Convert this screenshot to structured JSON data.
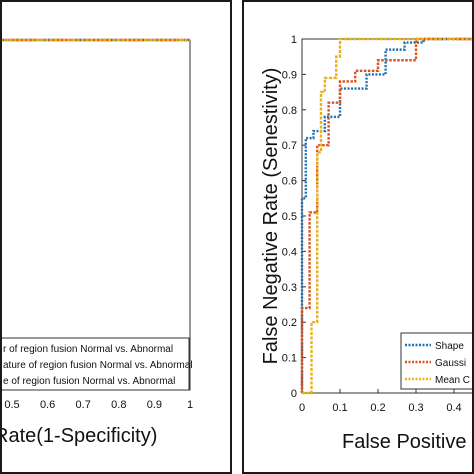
{
  "chart_data": [
    {
      "type": "line",
      "xlabel": "Rate(1-Specificity)",
      "xlim": [
        0,
        1
      ],
      "ylim": [
        0,
        1
      ],
      "x_ticks": [
        "0.5",
        "0.6",
        "0.7",
        "0.8",
        "0.9",
        "1"
      ],
      "legend_placement": "bottom-right",
      "series": [
        {
          "name": "r of region fusion Normal vs. Abnormal",
          "color": "#1f6fb2",
          "x": [
            0,
            0.02,
            0.02,
            0.06,
            0.06,
            0.1,
            0.1,
            0.15,
            0.15,
            1.0
          ],
          "y": [
            0.94,
            0.94,
            0.96,
            0.96,
            0.98,
            0.98,
            0.99,
            0.99,
            1.0,
            1.0
          ]
        },
        {
          "name": "ature of region fusion Normal vs. Abnormal",
          "color": "#d9531e",
          "x": [
            0,
            0.03,
            0.03,
            0.08,
            0.08,
            0.12,
            0.12,
            1.0
          ],
          "y": [
            0.95,
            0.95,
            0.97,
            0.97,
            0.99,
            0.99,
            1.0,
            1.0
          ]
        },
        {
          "name": "e of region fusion Normal vs. Abnormal",
          "color": "#e8b11c",
          "x": [
            0,
            0.04,
            0.04,
            0.09,
            0.09,
            1.0
          ],
          "y": [
            0.96,
            0.96,
            0.98,
            0.98,
            1.0,
            1.0
          ]
        }
      ]
    },
    {
      "type": "line",
      "xlabel": "False Positive R",
      "ylabel": "False Negative Rate (Senestivity)",
      "xlim": [
        0,
        0.5
      ],
      "ylim": [
        0,
        1
      ],
      "x_ticks": [
        "0",
        "0.1",
        "0.2",
        "0.3",
        "0.4"
      ],
      "y_ticks": [
        "0",
        "0.1",
        "0.2",
        "0.3",
        "0.4",
        "0.5",
        "0.6",
        "0.7",
        "0.8",
        "0.9",
        "1"
      ],
      "grid": false,
      "legend_placement": "bottom-right",
      "series": [
        {
          "name": "Shape",
          "color": "#1f6fb2",
          "x": [
            0,
            0,
            0.01,
            0.01,
            0.03,
            0.03,
            0.06,
            0.06,
            0.1,
            0.1,
            0.17,
            0.17,
            0.22,
            0.22,
            0.27,
            0.27,
            0.32,
            0.32,
            0.5
          ],
          "y": [
            0,
            0.55,
            0.55,
            0.72,
            0.72,
            0.74,
            0.74,
            0.78,
            0.78,
            0.86,
            0.86,
            0.9,
            0.9,
            0.97,
            0.97,
            0.99,
            0.99,
            1.0,
            1.0
          ]
        },
        {
          "name": "Gaussi",
          "color": "#d9531e",
          "x": [
            0,
            0,
            0.02,
            0.02,
            0.04,
            0.04,
            0.07,
            0.07,
            0.1,
            0.1,
            0.14,
            0.14,
            0.2,
            0.2,
            0.3,
            0.3,
            0.5
          ],
          "y": [
            0,
            0.24,
            0.24,
            0.51,
            0.51,
            0.7,
            0.7,
            0.82,
            0.82,
            0.88,
            0.88,
            0.91,
            0.91,
            0.94,
            0.94,
            1.0,
            1.0
          ]
        },
        {
          "name": "Mean C",
          "color": "#e8b11c",
          "x": [
            0,
            0.025,
            0.025,
            0.04,
            0.04,
            0.05,
            0.05,
            0.06,
            0.06,
            0.09,
            0.09,
            0.1,
            0.1,
            0.5
          ],
          "y": [
            0,
            0,
            0.2,
            0.2,
            0.68,
            0.68,
            0.85,
            0.85,
            0.89,
            0.89,
            0.95,
            0.95,
            1.0,
            1.0
          ]
        }
      ]
    }
  ]
}
